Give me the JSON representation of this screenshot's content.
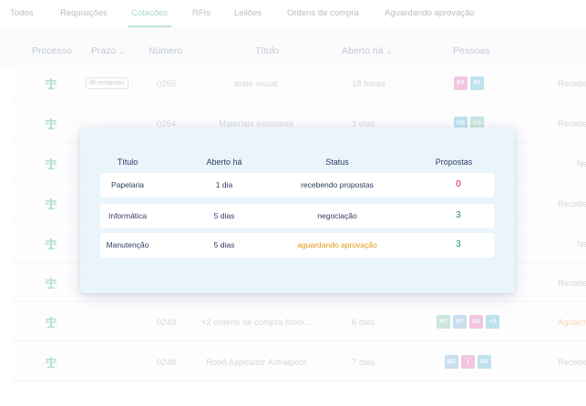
{
  "tabs": [
    {
      "label": "Todos",
      "active": false
    },
    {
      "label": "Requisições",
      "active": false
    },
    {
      "label": "Cotações",
      "active": true
    },
    {
      "label": "RFIs",
      "active": false
    },
    {
      "label": "Leilões",
      "active": false
    },
    {
      "label": "Ordens de compra",
      "active": false
    },
    {
      "label": "Aguardando aprovação",
      "active": false
    }
  ],
  "table": {
    "headers": {
      "processo": "Processo",
      "prazo": "Prazo",
      "numero": "Número",
      "titulo": "Título",
      "aberto": "Aberto há",
      "pessoas": "Pessoas"
    },
    "rows": [
      {
        "deadline": "8h restantes",
        "numero": "0255",
        "titulo": "teste visual",
        "aberto": "18 horas",
        "pessoas": [
          "PT",
          "PT"
        ],
        "status": "Recebe"
      },
      {
        "deadline": "",
        "numero": "0254",
        "titulo": "Materiais escolares",
        "aberto": "3 dias",
        "pessoas": [
          "VG",
          "VG"
        ],
        "status": "Recebe"
      },
      {
        "deadline": "",
        "numero": "",
        "titulo": "",
        "aberto": "",
        "pessoas": [],
        "status": "Ne"
      },
      {
        "deadline": "",
        "numero": "",
        "titulo": "",
        "aberto": "",
        "pessoas": [],
        "status": "Recebe"
      },
      {
        "deadline": "",
        "numero": "",
        "titulo": "",
        "aberto": "",
        "pessoas": [],
        "status": "Ne"
      },
      {
        "deadline": "",
        "numero": "",
        "titulo": "",
        "aberto": "",
        "pessoas": [],
        "status": "Recebe"
      },
      {
        "deadline": "",
        "numero": "0249",
        "titulo": "+2 ordens de compra fluxo...",
        "aberto": "6 dias",
        "pessoas": [
          "RT",
          "RT",
          "VG",
          "+2"
        ],
        "status": "Aguard"
      },
      {
        "deadline": "",
        "numero": "0248",
        "titulo": "Robô Aspirador Astralpool",
        "aberto": "7 dias",
        "pessoas": [
          "GC",
          "I",
          "VG"
        ],
        "status": "Recebe"
      }
    ]
  },
  "popup": {
    "headers": {
      "titulo": "Título",
      "aberto": "Aberto há",
      "status": "Status",
      "propostas": "Propostas"
    },
    "rows": [
      {
        "titulo": "Papelaria",
        "aberto": "1 dia",
        "status": "recebendo propostas",
        "propostas": "0",
        "status_color": "#2f3b63",
        "propostas_color": "#d21d2d"
      },
      {
        "titulo": "Informática",
        "aberto": "5 dias",
        "status": "negociação",
        "propostas": "3",
        "status_color": "#2f3b63",
        "propostas_color": "#1f8a80"
      },
      {
        "titulo": "Manutenção",
        "aberto": "5 dias",
        "status": "aguardando aprovação",
        "propostas": "3",
        "status_color": "#e0960e",
        "propostas_color": "#1f8a80"
      }
    ]
  },
  "colors": {
    "accent_green": "#4caf8a",
    "popup_bg": "#e9f4fb",
    "navy_text": "#2f3b63",
    "orange": "#e0960e",
    "red": "#d21d2d",
    "teal": "#1f8a80"
  },
  "icons": {
    "process": "scale-icon",
    "sort": "chevron-down-icon"
  }
}
